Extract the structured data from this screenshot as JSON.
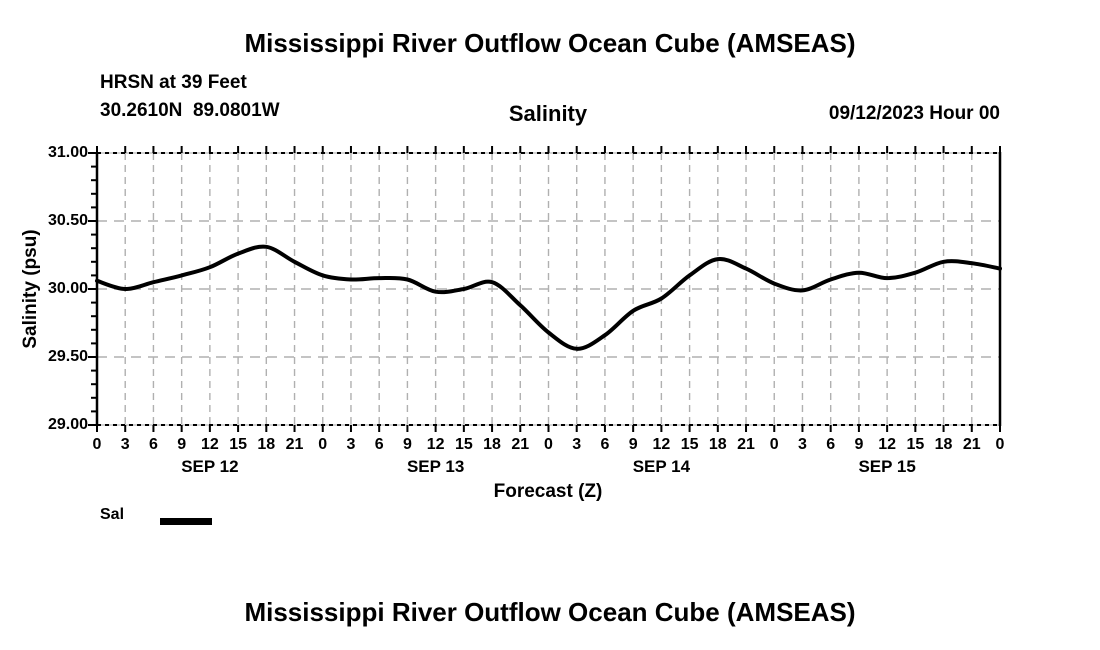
{
  "titles": {
    "top": "Mississippi River Outflow Ocean Cube (AMSEAS)",
    "bottom": "Mississippi River Outflow Ocean Cube (AMSEAS)"
  },
  "header": {
    "station": "HRSN at 39 Feet",
    "coordinates": "30.2610N  89.0801W",
    "variable": "Salinity",
    "run": "09/12/2023 Hour 00"
  },
  "legend": {
    "label": "Sal",
    "line_color": "#000000"
  },
  "chart_data": {
    "type": "line",
    "title": "Salinity",
    "xlabel": "Forecast (Z)",
    "ylabel": "Salinity (psu)",
    "ylim": [
      29.0,
      31.0
    ],
    "yticks": [
      29.0,
      29.5,
      30.0,
      30.5,
      31.0
    ],
    "ytick_labels": [
      "29.00",
      "29.50",
      "30.00",
      "30.50",
      "31.00"
    ],
    "y_minor_step": 0.1,
    "x_hours": [
      0,
      3,
      6,
      9,
      12,
      15,
      18,
      21,
      24,
      27,
      30,
      33,
      36,
      39,
      42,
      45,
      48,
      51,
      54,
      57,
      60,
      63,
      66,
      69,
      72,
      75,
      78,
      81,
      84,
      87,
      90,
      93,
      96
    ],
    "xtick_labels": [
      "0",
      "3",
      "6",
      "9",
      "12",
      "15",
      "18",
      "21",
      "0",
      "3",
      "6",
      "9",
      "12",
      "15",
      "18",
      "21",
      "0",
      "3",
      "6",
      "9",
      "12",
      "15",
      "18",
      "21",
      "0",
      "3",
      "6",
      "9",
      "12",
      "15",
      "18",
      "21",
      "0"
    ],
    "day_labels": [
      {
        "label": "SEP 12",
        "center_hour": 12
      },
      {
        "label": "SEP 13",
        "center_hour": 36
      },
      {
        "label": "SEP 14",
        "center_hour": 60
      },
      {
        "label": "SEP 15",
        "center_hour": 84
      }
    ],
    "grid": true,
    "grid_color": "#b0b0b0",
    "frame_color": "#000000",
    "legend_position": "bottom-left",
    "series": [
      {
        "name": "Sal",
        "color": "#000000",
        "values": [
          30.06,
          30.0,
          30.05,
          30.1,
          30.16,
          30.26,
          30.31,
          30.2,
          30.1,
          30.07,
          30.08,
          30.07,
          29.98,
          30.0,
          30.05,
          29.88,
          29.68,
          29.56,
          29.66,
          29.84,
          29.93,
          30.1,
          30.22,
          30.15,
          30.04,
          29.99,
          30.07,
          30.12,
          30.08,
          30.12,
          30.2,
          30.19,
          30.15
        ]
      }
    ]
  }
}
